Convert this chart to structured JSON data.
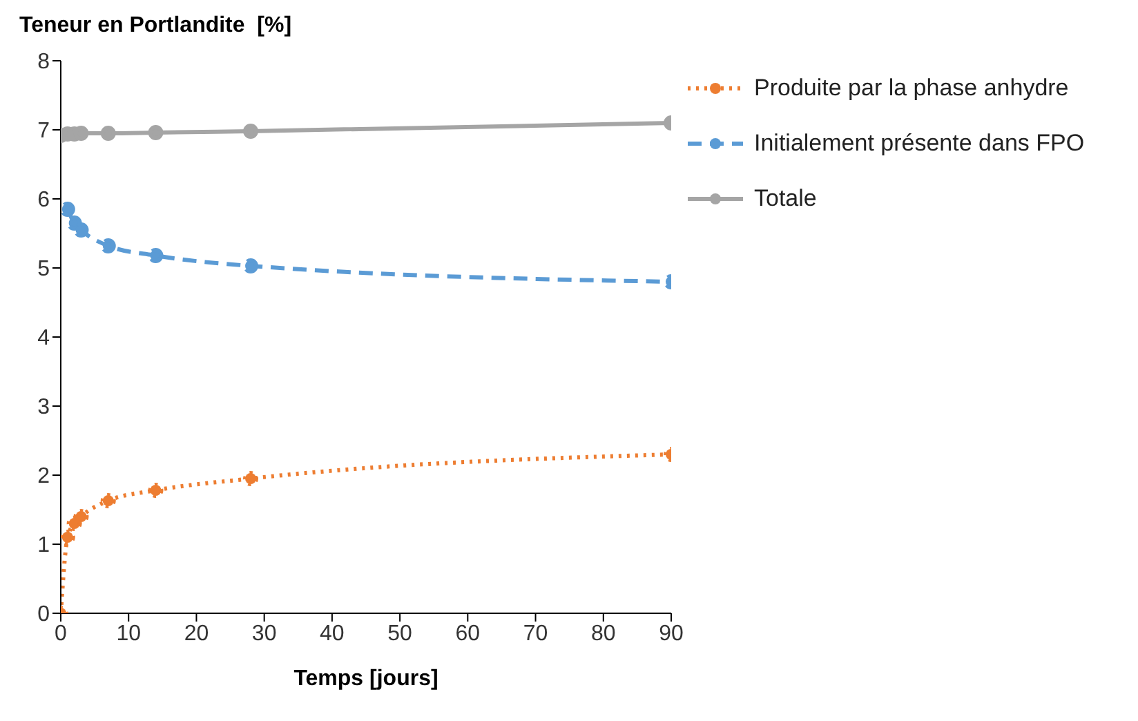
{
  "chart_data": {
    "type": "line",
    "ylabel": "Teneur en Portlandite  [%]",
    "xlabel": "Temps [jours]",
    "x": [
      0,
      1,
      2,
      3,
      7,
      14,
      28,
      90
    ],
    "xlim": [
      0,
      90
    ],
    "xticks": [
      0,
      10,
      20,
      30,
      40,
      50,
      60,
      70,
      80,
      90
    ],
    "ylim": [
      0,
      8
    ],
    "yticks": [
      0,
      1,
      2,
      3,
      4,
      5,
      6,
      7,
      8
    ],
    "grid": false,
    "legend": "right",
    "marker": "circle",
    "series": [
      {
        "name": "Produite par la phase anhydre",
        "color": "#ed7d31",
        "line_style": "dotted",
        "values": [
          0,
          1.1,
          1.3,
          1.4,
          1.63,
          1.78,
          1.95,
          2.3
        ]
      },
      {
        "name": "Initialement présente dans FPO",
        "color": "#5b9bd5",
        "line_style": "dashed",
        "values": [
          null,
          5.85,
          5.65,
          5.55,
          5.32,
          5.18,
          5.03,
          4.8
        ]
      },
      {
        "name": "Totale",
        "color": "#a5a5a5",
        "line_style": "solid",
        "values": [
          6.92,
          6.94,
          6.94,
          6.95,
          6.95,
          6.96,
          6.98,
          7.1
        ]
      }
    ]
  }
}
